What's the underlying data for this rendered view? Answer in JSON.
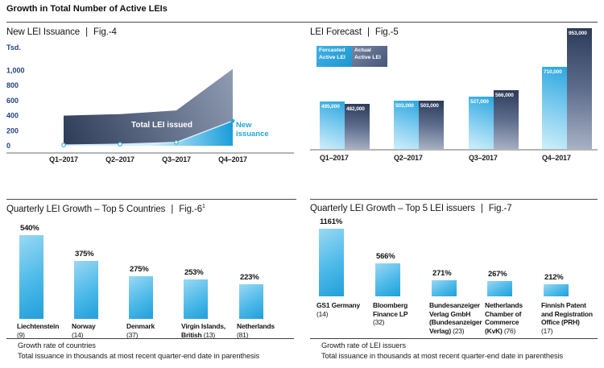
{
  "page_title": "Growth in Total Number of Active LEIs",
  "fig_separator": "|",
  "colors": {
    "accent_blue": "#29a4dd",
    "navy_dark": "#2e3c59",
    "slate_light": "#99a5bb",
    "text_navy": "#24437d",
    "pale_blue": "#cfeffb",
    "grey_axis": "#b5b5b5"
  },
  "chart_data": [
    {
      "id": "fig4",
      "type": "area",
      "title": "New LEI Issuance",
      "fig": "Fig.-4",
      "unit_label": "Tsd.",
      "x": [
        "Q1–2017",
        "Q2–2017",
        "Q3–2017",
        "Q4–2017"
      ],
      "yticks": [
        0,
        200,
        400,
        600,
        800,
        1000
      ],
      "ytick_labels": [
        "0",
        "200",
        "400",
        "600",
        "800",
        "1,000"
      ],
      "ylim": [
        0,
        1080
      ],
      "series": [
        {
          "name": "Total LEI issued",
          "values": [
            400,
            420,
            470,
            1020
          ]
        },
        {
          "name": "New issuance",
          "name_lines": [
            "New",
            "issuance"
          ],
          "values": [
            10,
            20,
            45,
            330
          ]
        }
      ]
    },
    {
      "id": "fig5",
      "type": "bar",
      "title": "LEI Forecast",
      "fig": "Fig.-5",
      "categories": [
        "Q1–2017",
        "Q2–2017",
        "Q3–2017",
        "Q4–2017"
      ],
      "legend": [
        {
          "lines": [
            "Forcasted",
            "Active LEI"
          ]
        },
        {
          "lines": [
            "Actual",
            "Active LEI"
          ]
        }
      ],
      "series": [
        {
          "name": "Forcasted Active LEI",
          "values": [
            495000,
            503000,
            527000,
            710000
          ],
          "labels": [
            "495,000",
            "503,000",
            "527,000",
            "710,000"
          ]
        },
        {
          "name": "Actual Active LEI",
          "values": [
            482000,
            503000,
            566000,
            953000
          ],
          "labels": [
            "482,000",
            "503,000",
            "566,000",
            "953,000"
          ]
        }
      ],
      "ylim_hint": [
        200000,
        953000
      ]
    },
    {
      "id": "fig6",
      "type": "bar",
      "title": "Quarterly LEI Growth – Top 5 Countries",
      "fig": "Fig.-6",
      "fig_superscript": "1",
      "categories": [
        "Liechtenstein",
        "Norway",
        "Denmark",
        "Virgin Islands, British",
        "Netherlands"
      ],
      "values": [
        540,
        375,
        275,
        253,
        223
      ],
      "value_labels": [
        "540%",
        "375%",
        "275%",
        "253%",
        "223%"
      ],
      "ylim": [
        0,
        540
      ],
      "labels": [
        {
          "lines": [
            "Liechtenstein"
          ],
          "count": "(9)"
        },
        {
          "lines": [
            "Norway"
          ],
          "count": "(14)"
        },
        {
          "lines": [
            "Denmark"
          ],
          "count": "(37)"
        },
        {
          "lines": [
            "Virgin Islands,",
            "British"
          ],
          "count": "(13)",
          "count_inline": true
        },
        {
          "lines": [
            "Netherlands"
          ],
          "count": "(81)"
        }
      ],
      "footnotes": [
        "Growth rate of countries",
        "Total issuance in thousands at most recent quarter-end date in parenthesis"
      ]
    },
    {
      "id": "fig7",
      "type": "bar",
      "title": "Quarterly LEI Growth – Top 5 LEI issuers",
      "fig": "Fig.-7",
      "categories": [
        "GS1 Germany",
        "Bloomberg Finance LP",
        "Bundesanzeiger Verlag GmbH (Bundesanzeiger Verlag)",
        "Netherlands Chamber of Commerce (KvK)",
        "Finnish Patent and Registration Office (PRH)"
      ],
      "values": [
        1161,
        566,
        271,
        267,
        212
      ],
      "value_labels": [
        "1161%",
        "566%",
        "271%",
        "267%",
        "212%"
      ],
      "ylim": [
        0,
        1161
      ],
      "labels": [
        {
          "lines": [
            "GS1 Germany"
          ],
          "count": "(14)"
        },
        {
          "lines": [
            "Bloomberg",
            "Finance LP"
          ],
          "count": "(32)"
        },
        {
          "lines": [
            "Bundesanzeiger",
            "Verlag GmbH",
            "(Bundesanzeiger",
            "Verlag)"
          ],
          "count": "(23)",
          "count_inline": true
        },
        {
          "lines": [
            "Netherlands",
            "Chamber of",
            "Commerce",
            "(KvK)"
          ],
          "count": "(76)",
          "count_inline": true
        },
        {
          "lines": [
            "Finnish Patent",
            "and Registration",
            "Office (PRH)"
          ],
          "count": "(17)"
        }
      ],
      "footnotes": [
        "Growth rate of LEI issuers",
        "Total issuance in thousands at most recent quarter-end date in parenthesis"
      ]
    }
  ]
}
